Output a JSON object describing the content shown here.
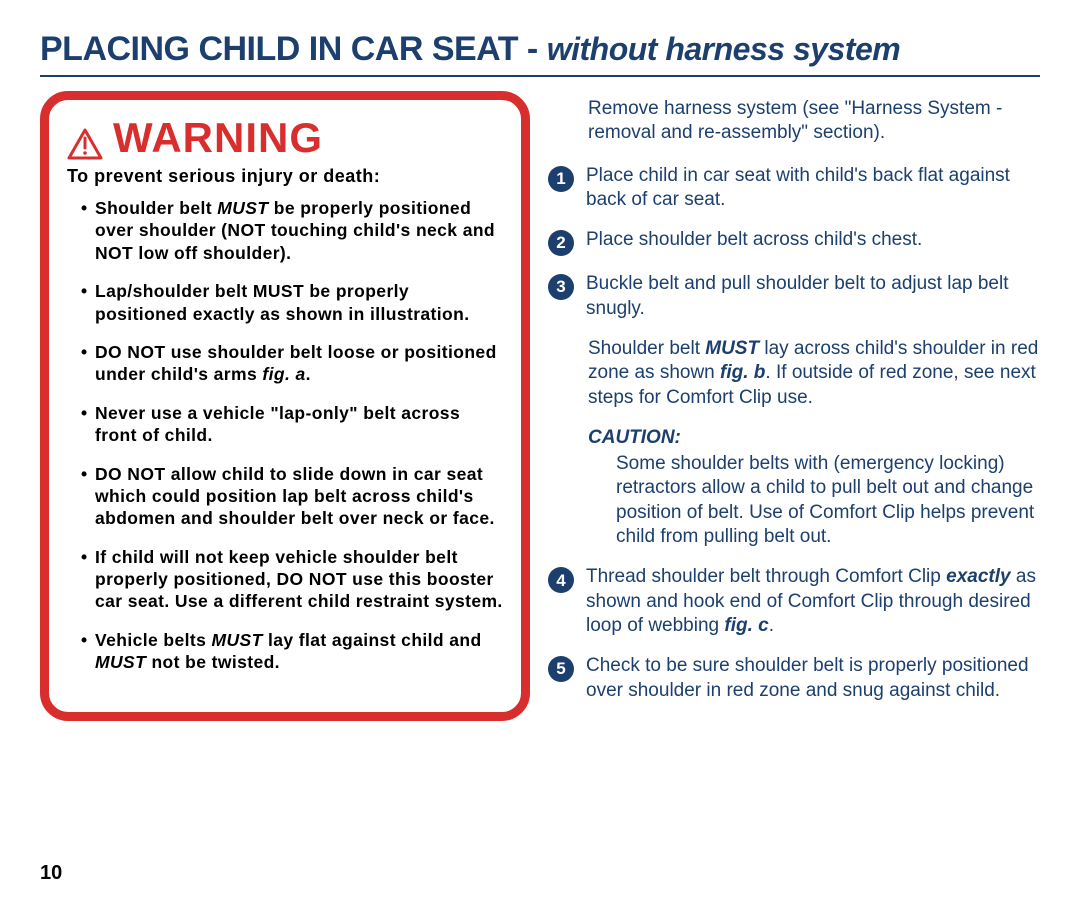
{
  "title_main": "PLACING CHILD IN CAR SEAT - ",
  "title_sub": "without harness system",
  "warning_word": "WARNING",
  "warning_lead": "To prevent serious injury or death:",
  "warnings": [
    "Shoulder belt <span class='em'>MUST</span> be properly positioned over shoulder (NOT touching child's neck and NOT low off shoulder).",
    "Lap/shoulder belt MUST be properly positioned exactly as shown in illustration.",
    "DO NOT use shoulder belt loose or positioned under child's arms <span class='em'>fig. a</span>.",
    "Never use a vehicle \"lap-only\" belt across front of child.",
    "DO NOT allow child to slide down in car seat which could position lap belt across child's abdomen and shoulder belt over neck or face.",
    "If child will not keep vehicle shoulder belt properly positioned, DO NOT use this booster car seat. Use a different child restraint system.",
    "Vehicle belts <span class='em'>MUST</span> lay flat against child and <span class='em'>MUST</span> not be twisted."
  ],
  "intro_text": "Remove harness system (see \"Harness System - removal and re-assembly\" section).",
  "steps": {
    "s1": "Place child in car seat with child's back flat against back of car seat.",
    "s2": "Place shoulder belt across child's chest.",
    "s3": "Buckle belt and pull shoulder belt to adjust lap belt snugly.",
    "s3_note": "Shoulder belt <b><i>MUST</i></b> lay across child's shoulder in red zone as shown <b><i>fig. b</i></b>. If outside of red zone, see next steps for Comfort Clip use.",
    "caution_label": "CAUTION:",
    "caution_body": "Some shoulder belts with (emergency locking) retractors allow a child to pull belt out and change position of belt. Use of Comfort Clip helps prevent child from pulling belt out.",
    "s4": "Thread shoulder belt through Comfort Clip <b><i>exactly</i></b> as shown and hook end of Comfort Clip through desired loop of webbing <b><i>fig. c</i></b>.",
    "s5": "Check to be sure shoulder belt is properly positioned over shoulder in red zone and snug against child."
  },
  "page_number": "10",
  "colors": {
    "brand_blue": "#1c3f6e",
    "warning_red": "#d92e2e"
  }
}
